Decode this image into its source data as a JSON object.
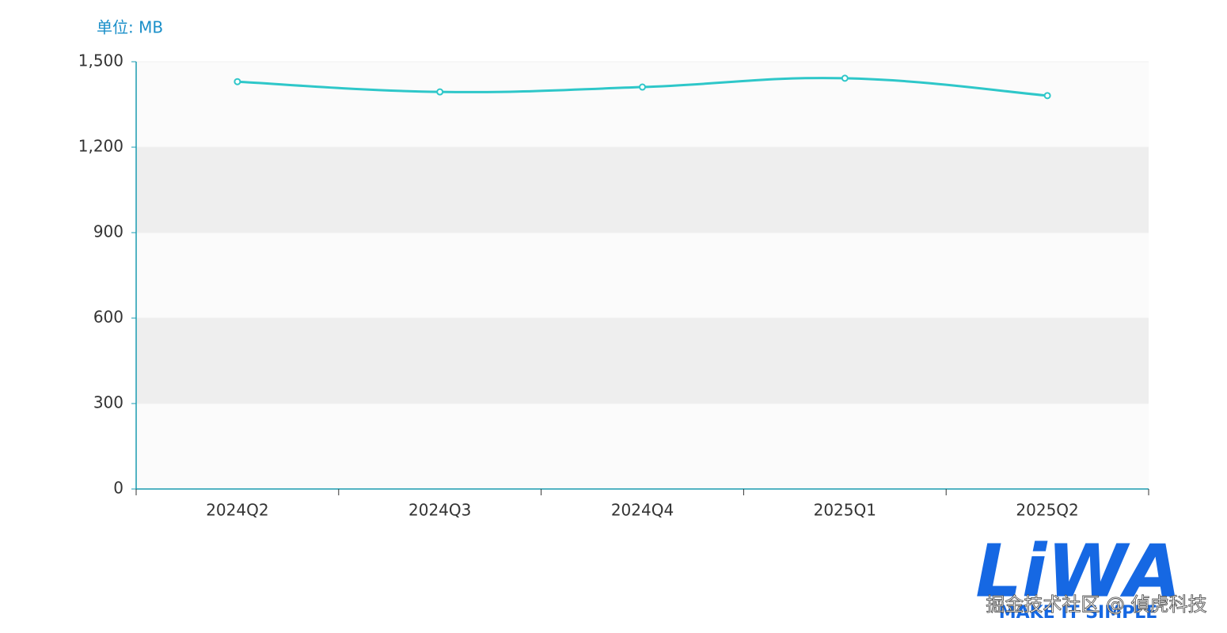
{
  "chart_data": {
    "type": "line",
    "y_axis_name": "单位: MB",
    "categories": [
      "2024Q2",
      "2024Q3",
      "2024Q4",
      "2025Q1",
      "2025Q2"
    ],
    "series": [
      {
        "color": "#2ec7c9",
        "values": [
          1430,
          1394,
          1411,
          1442,
          1381
        ]
      }
    ],
    "ylim": [
      0,
      1500
    ],
    "yticks": [
      0,
      300,
      600,
      900,
      {
        "value": 1200,
        "label": "1,200"
      },
      {
        "value": 1500,
        "label": "1,500"
      }
    ],
    "smooth": true,
    "split_area": true
  },
  "watermark": {
    "logo": "LiWA",
    "slogan": "MAKE IT SIMPLE",
    "credit": "掘金技术社区 @ 偵虎科技"
  }
}
